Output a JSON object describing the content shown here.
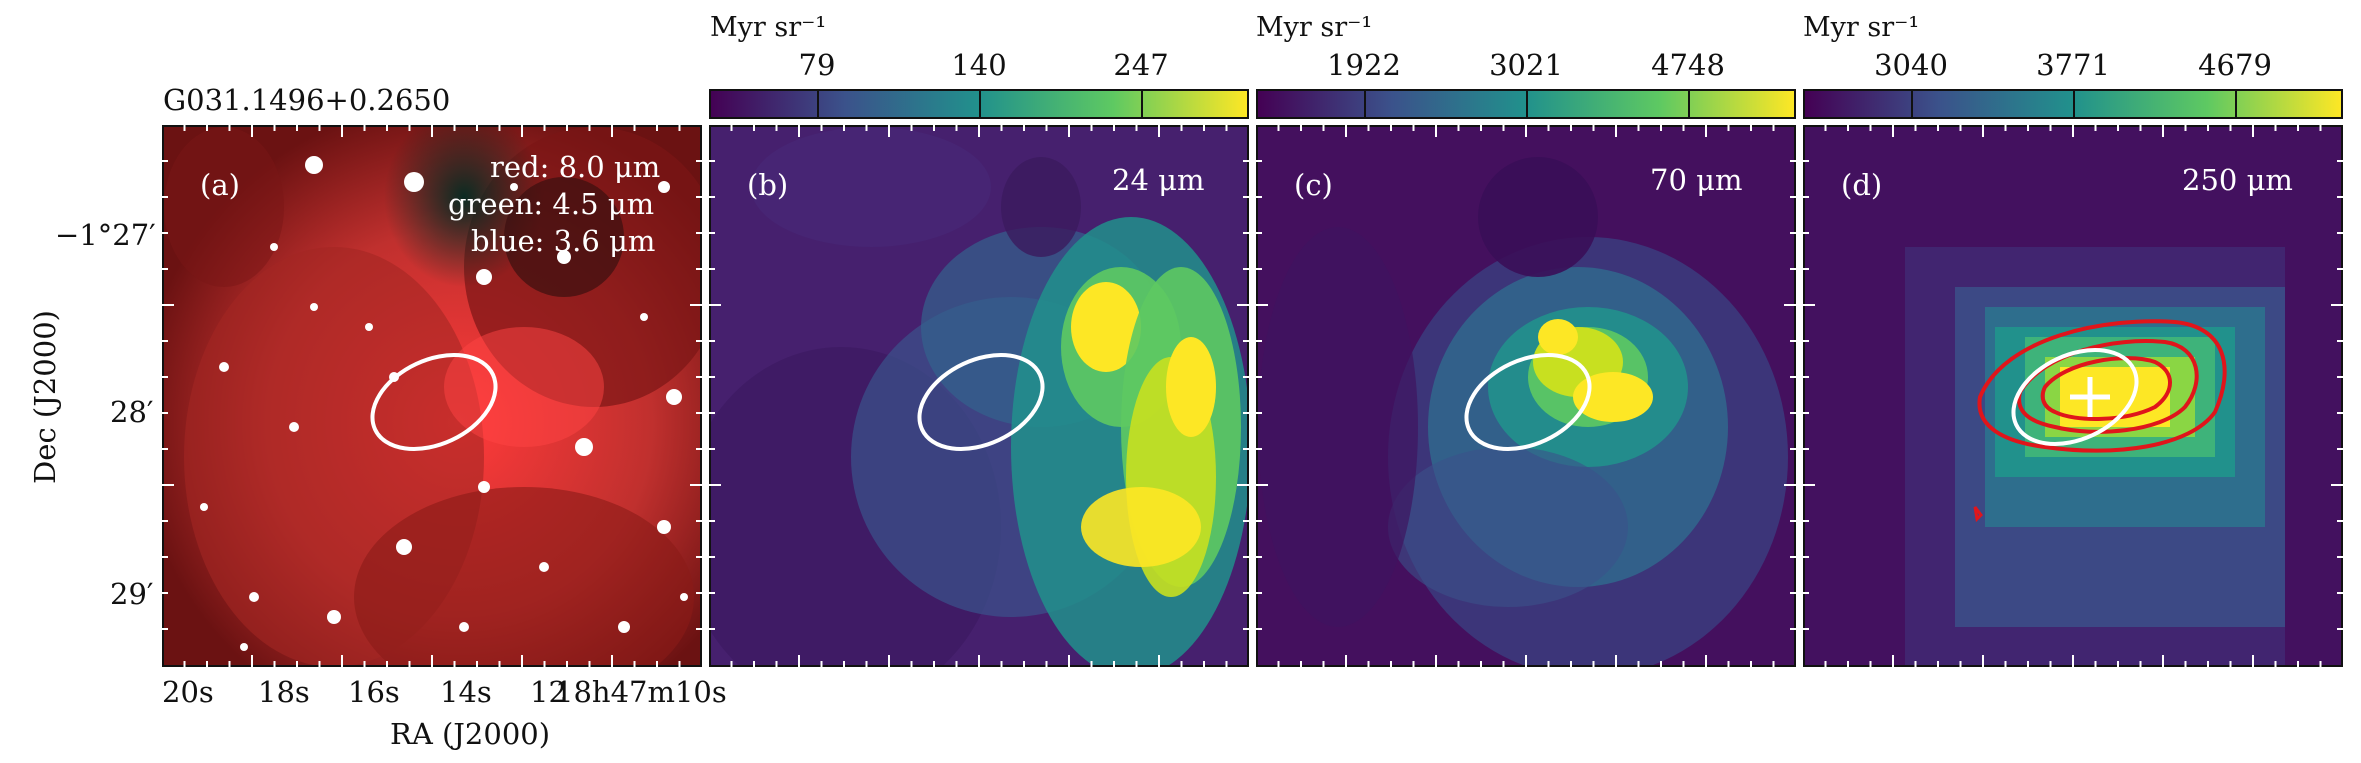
{
  "figure": {
    "source_name": "G031.1496+0.2650",
    "y_axis_label": "Dec (J2000)",
    "x_axis_label": "RA (J2000)",
    "dec_ticks": [
      "−1°27′",
      "28′",
      "29′"
    ],
    "ra_ticks": [
      "20s",
      "18s",
      "16s",
      "14s",
      "12",
      "18h47m10s"
    ]
  },
  "panels": [
    {
      "label": "(a)",
      "legend": {
        "red": "red: 8.0 μm",
        "green": "green: 4.5 μm",
        "blue": "blue: 3.6 μm"
      },
      "colorbar": null
    },
    {
      "label": "(b)",
      "band": "24 μm",
      "colorbar": {
        "unit": "Myr sr⁻¹",
        "ticks": [
          "79",
          "140",
          "247"
        ]
      }
    },
    {
      "label": "(c)",
      "band": "70 μm",
      "colorbar": {
        "unit": "Myr sr⁻¹",
        "ticks": [
          "1922",
          "3021",
          "4748"
        ]
      }
    },
    {
      "label": "(d)",
      "band": "250 μm",
      "colorbar": {
        "unit": "Myr sr⁻¹",
        "ticks": [
          "3040",
          "3771",
          "4679"
        ]
      }
    }
  ],
  "colors": {
    "ellipse": "#ffffff",
    "contour": "#e0151b",
    "cmap_low": "#440154",
    "cmap_high": "#fde725"
  }
}
